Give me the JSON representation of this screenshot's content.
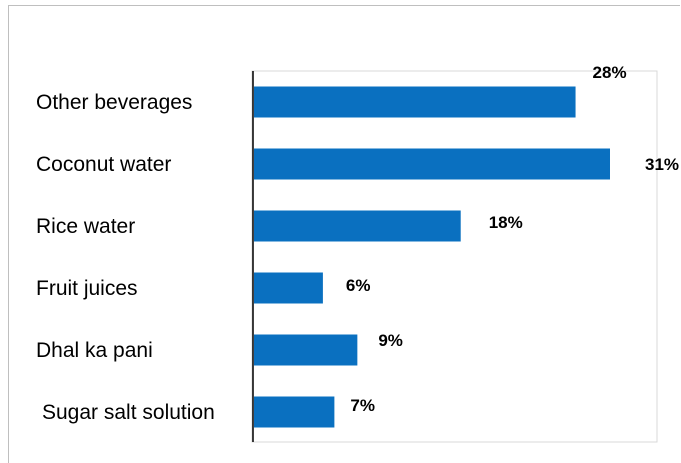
{
  "chart_data": {
    "type": "bar",
    "orientation": "horizontal",
    "categories": [
      "Other beverages",
      "Coconut water",
      "Rice water",
      "Fruit juices",
      "Dhal ka pani",
      "Sugar salt solution"
    ],
    "values": [
      28,
      31,
      18,
      6,
      9,
      7
    ],
    "data_labels": [
      "28%",
      "31%",
      "18%",
      "6%",
      "9%",
      "7%"
    ],
    "xlim": [
      0,
      35
    ],
    "grid": false,
    "legend": "none",
    "bar_color": "#0a70c0"
  }
}
